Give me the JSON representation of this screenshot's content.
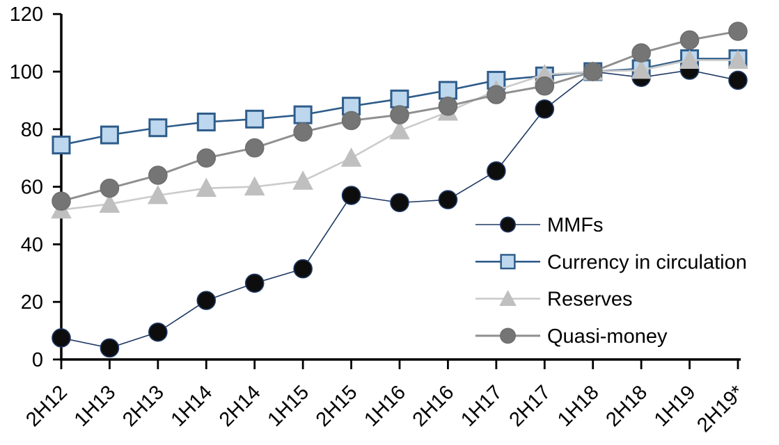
{
  "chart_data": {
    "type": "line",
    "title": "",
    "xlabel": "",
    "ylabel": "",
    "grid": false,
    "legend_position": "inside-right",
    "ylim": [
      0,
      120
    ],
    "yticks": [
      0,
      20,
      40,
      60,
      80,
      100,
      120
    ],
    "categories": [
      "2H12",
      "1H13",
      "2H13",
      "1H14",
      "2H14",
      "1H15",
      "2H15",
      "1H16",
      "2H16",
      "1H17",
      "2H17",
      "1H18",
      "2H18",
      "1H19",
      "2H19*"
    ],
    "series": [
      {
        "name": "MMFs",
        "marker": "circle",
        "line_color": "#1F3864",
        "marker_fill": "#0D0D0D",
        "marker_stroke": "#1F3864",
        "line_width": 1.6,
        "values": [
          7.5,
          4,
          9.5,
          20.5,
          26.5,
          31.5,
          57,
          54.5,
          55.5,
          65.5,
          87,
          100,
          98,
          100.5,
          97
        ]
      },
      {
        "name": "Currency in circulation",
        "marker": "square",
        "line_color": "#2E5C8A",
        "marker_fill": "#BDD7EE",
        "marker_stroke": "#2E5C8A",
        "line_width": 2.6,
        "values": [
          74.5,
          78,
          80.5,
          82.5,
          83.5,
          85,
          88,
          90.5,
          93.5,
          97,
          98.5,
          100,
          101,
          104.5,
          104.5
        ]
      },
      {
        "name": "Reserves",
        "marker": "triangle",
        "line_color": "#CBCBCB",
        "marker_fill": "#BFBFBF",
        "marker_stroke": "#BFBFBF",
        "line_width": 2.6,
        "values": [
          52,
          54,
          57,
          59.5,
          60,
          62,
          70,
          79.5,
          86,
          93.5,
          99,
          100,
          100.5,
          104,
          104
        ]
      },
      {
        "name": "Quasi-money",
        "marker": "circle",
        "line_color": "#8F8F8F",
        "marker_fill": "#757575",
        "marker_stroke": "#6F6F6F",
        "line_width": 3,
        "values": [
          55,
          59.5,
          64,
          70,
          73.5,
          79,
          83,
          85,
          88,
          92,
          95,
          100,
          106.5,
          111,
          114
        ]
      }
    ],
    "axis_color": "#000000",
    "background_color": "#FFFFFF"
  }
}
